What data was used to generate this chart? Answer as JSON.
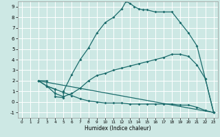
{
  "bg_color": "#cde8e4",
  "line_color": "#1a6b6b",
  "grid_color": "#b8d8d4",
  "xlim": [
    -0.5,
    23.5
  ],
  "ylim": [
    -1.5,
    9.5
  ],
  "xticks": [
    0,
    1,
    2,
    3,
    4,
    5,
    6,
    7,
    8,
    9,
    10,
    11,
    12,
    13,
    14,
    15,
    16,
    17,
    18,
    19,
    20,
    21,
    22,
    23
  ],
  "yticks": [
    -1,
    0,
    1,
    2,
    3,
    4,
    5,
    6,
    7,
    8,
    9
  ],
  "xlabel": "Humidex (Indice chaleur)",
  "line1_x": [
    2,
    3,
    3,
    4,
    4,
    5,
    5,
    6,
    7,
    8,
    9,
    10,
    11,
    12,
    12.5,
    13,
    13.5,
    14,
    14.5,
    15,
    16,
    17,
    18,
    19,
    20,
    21,
    22,
    23
  ],
  "line1_y": [
    2,
    2,
    1.5,
    1.2,
    0.5,
    0.4,
    1.0,
    2.6,
    4.0,
    5.1,
    6.5,
    7.5,
    8.0,
    8.8,
    9.5,
    9.3,
    9.0,
    8.8,
    8.7,
    8.7,
    8.5,
    8.5,
    8.5,
    7.5,
    6.5,
    5.3,
    2.2,
    -1.0
  ],
  "line2_x": [
    2,
    3,
    4,
    5,
    6,
    7,
    8,
    9,
    10,
    11,
    12,
    13,
    14,
    15,
    16,
    17,
    18,
    19,
    20,
    21,
    22,
    23
  ],
  "line2_y": [
    2,
    1.5,
    0.8,
    0.5,
    0.8,
    1.3,
    2.0,
    2.5,
    2.7,
    3.0,
    3.2,
    3.4,
    3.6,
    3.8,
    4.0,
    4.2,
    4.5,
    4.5,
    4.3,
    3.5,
    2.2,
    -1.0
  ],
  "line3_x": [
    2,
    23
  ],
  "line3_y": [
    2,
    -1.0
  ],
  "line4_x": [
    2,
    3,
    4,
    5,
    6,
    7,
    8,
    9,
    10,
    11,
    12,
    13,
    14,
    15,
    16,
    17,
    18,
    19,
    20,
    21,
    22,
    23
  ],
  "line4_y": [
    2,
    1.5,
    1.2,
    0.9,
    0.6,
    0.3,
    0.1,
    0.0,
    -0.1,
    -0.1,
    -0.1,
    -0.2,
    -0.2,
    -0.2,
    -0.2,
    -0.2,
    -0.2,
    -0.3,
    -0.3,
    -0.5,
    -0.8,
    -1.0
  ]
}
